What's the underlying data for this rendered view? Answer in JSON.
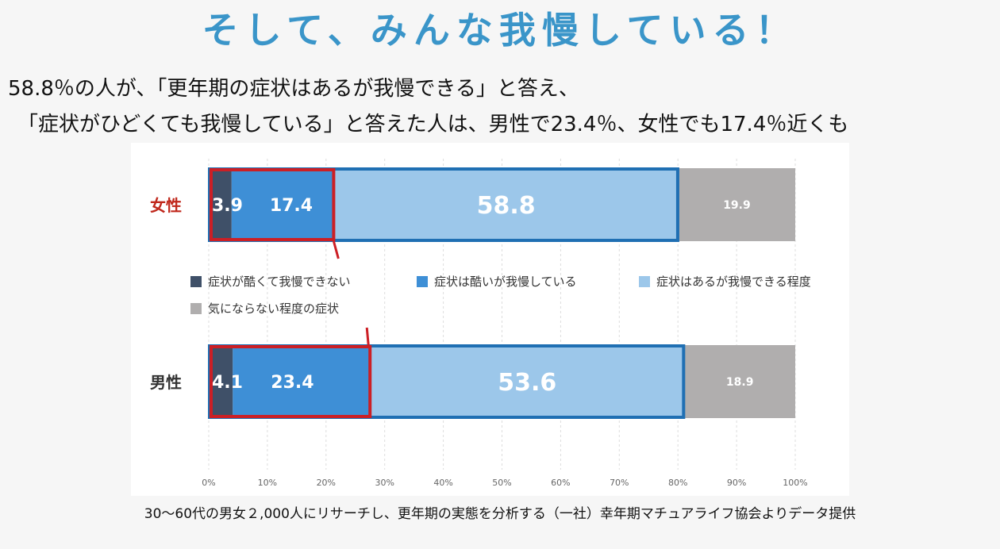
{
  "heading": "そして、みんな我慢している！",
  "summary_line1": "58.8％の人が、「更年期の症状はあるが我慢できる」と答え、",
  "summary_line2": "「症状がひどくても我慢している」と答えた人は、男性で23.4％、女性でも17.4％近くも",
  "source_note": "30〜60代の男女２,000人にリサーチし、更年期の実態を分析する（一社）幸年期マチュアライフ協会よりデータ提供",
  "colors": {
    "dark_navy": "#3f5068",
    "mid_blue": "#3e8fd6",
    "light_blue": "#9cc7ea",
    "gray": "#b0aeae",
    "highlight_red": "#cc1f25",
    "highlight_blue": "#1f6fb3",
    "female_label": "#c0281c",
    "male_label": "#333333"
  },
  "chart_data": {
    "type": "bar",
    "orientation": "horizontal",
    "stacked": true,
    "categories": [
      "女性",
      "男性"
    ],
    "series": [
      {
        "name": "症状が酷くて我慢できない",
        "values": [
          3.9,
          4.1
        ],
        "labels": [
          "3.9",
          "4.1"
        ]
      },
      {
        "name": "症状は酷いが我慢している",
        "values": [
          17.4,
          23.4
        ],
        "labels": [
          "17.4",
          "23.4"
        ]
      },
      {
        "name": "症状はあるが我慢できる程度",
        "values": [
          58.8,
          53.6
        ],
        "labels": [
          "58.8",
          "53.6"
        ]
      },
      {
        "name": "気にならない程度の症状",
        "values": [
          19.9,
          18.9
        ],
        "labels": [
          "19.9",
          "18.9"
        ]
      }
    ],
    "xlim": [
      0,
      100
    ],
    "xticks": [
      "0%",
      "10%",
      "20%",
      "30%",
      "40%",
      "50%",
      "60%",
      "70%",
      "80%",
      "90%",
      "100%"
    ],
    "grid": true,
    "legend_position": "middle"
  }
}
